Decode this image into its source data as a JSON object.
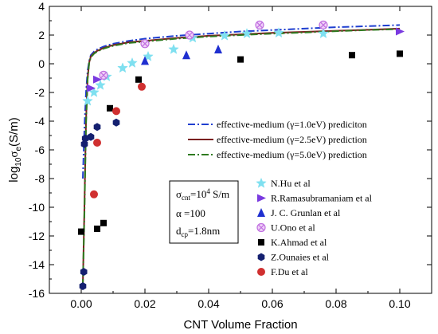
{
  "chart_data": {
    "type": "scatter",
    "title": "",
    "xlabel": "CNT Volume Fraction",
    "ylabel_parts": [
      "log",
      "10",
      "σ",
      "e",
      "(S/m)"
    ],
    "xlim": [
      -0.01,
      0.11
    ],
    "ylim": [
      -16,
      4
    ],
    "x_ticks": [
      "0.00",
      "0.02",
      "0.04",
      "0.06",
      "0.08",
      "0.10"
    ],
    "x_tick_values": [
      0.0,
      0.02,
      0.04,
      0.06,
      0.08,
      0.1
    ],
    "y_ticks": [
      "-16",
      "-14",
      "-12",
      "-10",
      "-8",
      "-6",
      "-4",
      "-2",
      "0",
      "2",
      "4"
    ],
    "y_tick_values": [
      -16,
      -14,
      -12,
      -10,
      -8,
      -6,
      -4,
      -2,
      0,
      2,
      4
    ],
    "grid": false,
    "curves": [
      {
        "name_parts": [
          "effective-medium (",
          "γ",
          "=1.0eV) prediciton"
        ],
        "color": "#1f3fd0",
        "dash": "dashdot",
        "x": [
          0.0005,
          0.001,
          0.0015,
          0.002,
          0.0025,
          0.003,
          0.004,
          0.005,
          0.007,
          0.01,
          0.015,
          0.02,
          0.03,
          0.04,
          0.05,
          0.06,
          0.07,
          0.08,
          0.09,
          0.1
        ],
        "y": [
          -8.0,
          -4.5,
          -2.0,
          -0.5,
          0.2,
          0.6,
          0.85,
          1.0,
          1.2,
          1.4,
          1.6,
          1.75,
          1.95,
          2.1,
          2.25,
          2.35,
          2.45,
          2.55,
          2.62,
          2.7
        ]
      },
      {
        "name_parts": [
          "effective-medium (",
          "γ",
          "=2.5eV) prediction"
        ],
        "color": "#7a1f1f",
        "dash": "solid",
        "x": [
          0.0005,
          0.001,
          0.0015,
          0.002,
          0.0025,
          0.003,
          0.004,
          0.005,
          0.007,
          0.01,
          0.015,
          0.02,
          0.03,
          0.04,
          0.05,
          0.06,
          0.07,
          0.08,
          0.09,
          0.1
        ],
        "y": [
          -15.5,
          -10.0,
          -4.0,
          -1.0,
          0.1,
          0.5,
          0.75,
          0.9,
          1.1,
          1.3,
          1.5,
          1.6,
          1.8,
          1.95,
          2.05,
          2.15,
          2.22,
          2.3,
          2.37,
          2.45
        ]
      },
      {
        "name_parts": [
          "effective-medium (",
          "γ",
          "=5.0eV) prediction"
        ],
        "color": "#2f7a1f",
        "dash": "dashdot",
        "x": [
          0.0005,
          0.001,
          0.0015,
          0.002,
          0.0025,
          0.003,
          0.004,
          0.005,
          0.007,
          0.01,
          0.015,
          0.02,
          0.03,
          0.04,
          0.05,
          0.06,
          0.07,
          0.08,
          0.09,
          0.1
        ],
        "y": [
          -15.5,
          -10.5,
          -4.3,
          -1.1,
          0.05,
          0.45,
          0.7,
          0.85,
          1.05,
          1.25,
          1.45,
          1.55,
          1.75,
          1.9,
          2.0,
          2.1,
          2.18,
          2.27,
          2.35,
          2.42
        ]
      }
    ],
    "series": [
      {
        "name": "N.Hu et al",
        "marker": "star",
        "color": "#7fe0f0",
        "x": [
          0.002,
          0.004,
          0.006,
          0.008,
          0.013,
          0.016,
          0.021,
          0.029,
          0.035,
          0.045,
          0.052,
          0.062,
          0.076
        ],
        "y": [
          -2.6,
          -2.0,
          -1.5,
          -0.9,
          -0.3,
          0.05,
          0.5,
          1.0,
          1.8,
          1.95,
          2.1,
          2.15,
          2.1
        ]
      },
      {
        "name": "R.Ramasubramaniam et al",
        "marker": "triangle-right",
        "color": "#7a3ae0",
        "x": [
          0.003,
          0.005,
          0.1
        ],
        "y": [
          -1.7,
          -1.1,
          2.25
        ]
      },
      {
        "name": "J. C. Grunlan et al",
        "marker": "triangle-up",
        "color": "#1f2fd0",
        "x": [
          0.02,
          0.033,
          0.043
        ],
        "y": [
          0.2,
          0.6,
          1.0
        ]
      },
      {
        "name": "U.Ono et al",
        "marker": "crossed-circle",
        "color": "#c070e0",
        "x": [
          0.007,
          0.02,
          0.034,
          0.056,
          0.076
        ],
        "y": [
          -0.8,
          1.4,
          2.0,
          2.7,
          2.7
        ]
      },
      {
        "name": "K.Ahmad et al",
        "marker": "square",
        "color": "#000000",
        "x": [
          0.0,
          0.005,
          0.007,
          0.009,
          0.018,
          0.05,
          0.085,
          0.1
        ],
        "y": [
          -11.7,
          -11.5,
          -11.1,
          -3.1,
          -1.1,
          0.3,
          0.6,
          0.7
        ]
      },
      {
        "name": "Z.Ounaies et al",
        "marker": "hexagon",
        "color": "#142070",
        "x": [
          0.0005,
          0.0008,
          0.001,
          0.0013,
          0.003,
          0.005,
          0.011
        ],
        "y": [
          -15.5,
          -14.5,
          -5.6,
          -5.2,
          -5.1,
          -4.4,
          -4.1
        ]
      },
      {
        "name": "F.Du et al",
        "marker": "circle",
        "color": "#d03030",
        "x": [
          0.004,
          0.005,
          0.011,
          0.019
        ],
        "y": [
          -9.1,
          -5.5,
          -3.3,
          -1.6
        ]
      }
    ],
    "annotation": {
      "line1_parts": [
        "σ",
        "cnt",
        "=10",
        "4",
        " S/m"
      ],
      "line2": "α =100",
      "line3_parts": [
        "d",
        "cp",
        "=1.8nm"
      ]
    }
  }
}
